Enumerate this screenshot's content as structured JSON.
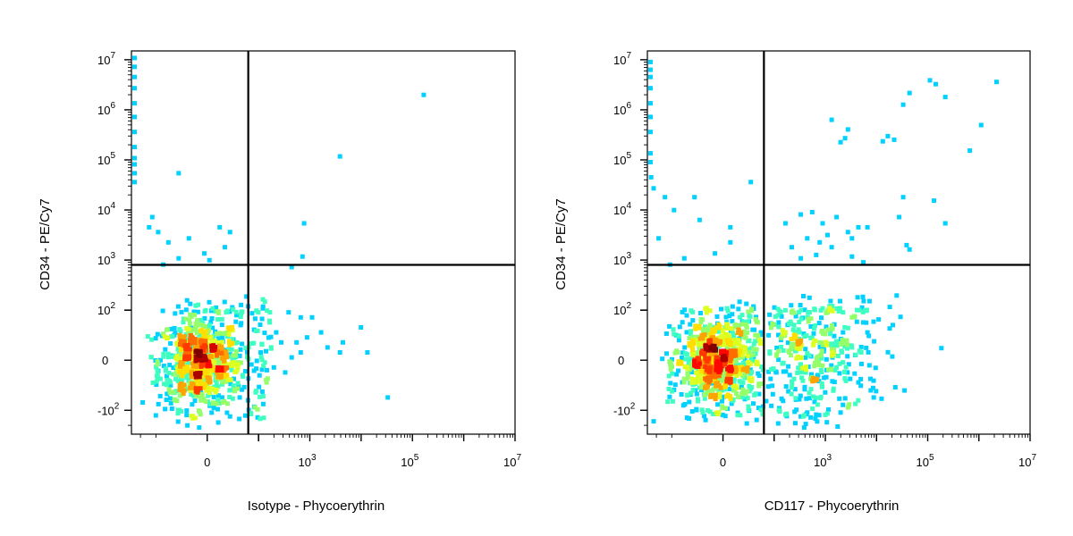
{
  "chart_data": [
    {
      "type": "scatter",
      "title": "",
      "xlabel": "Isotype - Phycoerythrin",
      "ylabel": "CD34 - PE/Cy7",
      "x_scale": "biexponential",
      "y_scale": "biexponential",
      "xlim": [
        -300,
        10000000
      ],
      "ylim": [
        -300,
        15000000
      ],
      "x_ticks": [
        {
          "value": 0,
          "base": "0",
          "exp": ""
        },
        {
          "value": 1000,
          "base": "10",
          "exp": "3"
        },
        {
          "value": 100000,
          "base": "10",
          "exp": "5"
        },
        {
          "value": 10000000,
          "base": "10",
          "exp": "7"
        }
      ],
      "y_ticks": [
        {
          "value": -100,
          "base": "-10",
          "exp": "2"
        },
        {
          "value": 0,
          "base": "0",
          "exp": ""
        },
        {
          "value": 100,
          "base": "10",
          "exp": "2"
        },
        {
          "value": 1000,
          "base": "10",
          "exp": "3"
        },
        {
          "value": 10000,
          "base": "10",
          "exp": "4"
        },
        {
          "value": 100000,
          "base": "10",
          "exp": "5"
        },
        {
          "value": 1000000,
          "base": "10",
          "exp": "6"
        },
        {
          "value": 10000000,
          "base": "10",
          "exp": "7"
        }
      ],
      "gate": {
        "x": 80,
        "y": 800
      },
      "grid": false,
      "colormap": "density-jet",
      "points": [
        [
          150000,
          2200000
        ],
        [
          3500,
          130000
        ],
        [
          -60,
          60000
        ],
        [
          700,
          6000
        ],
        [
          650,
          1300
        ],
        [
          400,
          800
        ],
        [
          30000,
          -70
        ],
        [
          9000,
          70
        ],
        [
          4000,
          40
        ],
        [
          3500,
          20
        ],
        [
          12000,
          20
        ],
        [
          2000,
          30
        ],
        [
          1500,
          60
        ],
        [
          800,
          50
        ],
        [
          600,
          20
        ],
        [
          400,
          10
        ],
        [
          300,
          -20
        ],
        [
          250,
          40
        ],
        [
          200,
          60
        ],
        [
          180,
          -10
        ],
        [
          160,
          30
        ],
        [
          150,
          80
        ],
        [
          120,
          0
        ],
        [
          130,
          -40
        ],
        [
          110,
          120
        ],
        [
          100,
          20
        ],
        [
          90,
          -60
        ],
        [
          95,
          100
        ],
        [
          600,
          90
        ],
        [
          500,
          40
        ],
        [
          1000,
          90
        ],
        [
          350,
          100
        ],
        [
          -130,
          8000
        ],
        [
          -150,
          5000
        ],
        [
          -100,
          4000
        ],
        [
          -80,
          2500
        ],
        [
          -40,
          3000
        ],
        [
          20,
          5000
        ],
        [
          40,
          4000
        ],
        [
          -10,
          1500
        ],
        [
          0,
          1100
        ],
        [
          30,
          2000
        ],
        [
          -60,
          1200
        ],
        [
          -90,
          900
        ],
        [
          -200,
          -80
        ],
        [
          40,
          -120
        ],
        [
          -20,
          -200
        ]
      ],
      "edge_points": [
        [
          -300,
          12000000
        ],
        [
          -300,
          8000000
        ],
        [
          -300,
          5000000
        ],
        [
          -300,
          3000000
        ],
        [
          -300,
          1500000
        ],
        [
          -300,
          800000
        ],
        [
          -300,
          400000
        ],
        [
          -300,
          200000
        ],
        [
          -300,
          120000
        ],
        [
          -300,
          90000
        ],
        [
          -300,
          60000
        ],
        [
          -300,
          40000
        ]
      ],
      "clusters": [
        {
          "cx": -20,
          "cy": 0,
          "sx": 40,
          "sy": 45,
          "n": 700
        },
        {
          "cx": 40,
          "cy": 20,
          "sx": 50,
          "sy": 80,
          "n": 150
        }
      ]
    },
    {
      "type": "scatter",
      "title": "",
      "xlabel": "CD117 - Phycoerythrin",
      "ylabel": "CD34 - PE/Cy7",
      "x_scale": "biexponential",
      "y_scale": "biexponential",
      "xlim": [
        -300,
        10000000
      ],
      "ylim": [
        -300,
        15000000
      ],
      "x_ticks": [
        {
          "value": 0,
          "base": "0",
          "exp": ""
        },
        {
          "value": 1000,
          "base": "10",
          "exp": "3"
        },
        {
          "value": 100000,
          "base": "10",
          "exp": "5"
        },
        {
          "value": 10000000,
          "base": "10",
          "exp": "7"
        }
      ],
      "y_ticks": [
        {
          "value": -100,
          "base": "-10",
          "exp": "2"
        },
        {
          "value": 0,
          "base": "0",
          "exp": ""
        },
        {
          "value": 100,
          "base": "10",
          "exp": "2"
        },
        {
          "value": 1000,
          "base": "10",
          "exp": "3"
        },
        {
          "value": 10000,
          "base": "10",
          "exp": "4"
        },
        {
          "value": 100000,
          "base": "10",
          "exp": "5"
        },
        {
          "value": 1000000,
          "base": "10",
          "exp": "6"
        },
        {
          "value": 10000000,
          "base": "10",
          "exp": "7"
        }
      ],
      "gate": {
        "x": 80,
        "y": 800
      },
      "grid": false,
      "colormap": "density-jet",
      "points": [
        [
          100000,
          4300000
        ],
        [
          2000000,
          4000000
        ],
        [
          130000,
          3600000
        ],
        [
          40000,
          2400000
        ],
        [
          200000,
          2000000
        ],
        [
          30000,
          1400000
        ],
        [
          1000000,
          550000
        ],
        [
          1200,
          700000
        ],
        [
          2500,
          450000
        ],
        [
          2200,
          300000
        ],
        [
          1800,
          250000
        ],
        [
          15000,
          330000
        ],
        [
          20000,
          280000
        ],
        [
          12000,
          260000
        ],
        [
          600000,
          170000
        ],
        [
          30000,
          20000
        ],
        [
          25000,
          8000
        ],
        [
          120000,
          17000
        ],
        [
          200000,
          6000
        ],
        [
          35000,
          2200
        ],
        [
          40000,
          1800
        ],
        [
          50,
          40000
        ],
        [
          -60,
          20000
        ],
        [
          -150,
          20000
        ],
        [
          -100,
          11000
        ],
        [
          -50,
          7000
        ],
        [
          10,
          5000
        ],
        [
          150,
          6000
        ],
        [
          300,
          9000
        ],
        [
          500,
          10000
        ],
        [
          800,
          6000
        ],
        [
          1500,
          8000
        ],
        [
          2500,
          4000
        ],
        [
          4000,
          5000
        ],
        [
          6000,
          5000
        ],
        [
          3000,
          3000
        ],
        [
          1000,
          3500
        ],
        [
          1200,
          2000
        ],
        [
          700,
          2500
        ],
        [
          400,
          3000
        ],
        [
          200,
          2000
        ],
        [
          10,
          2500
        ],
        [
          -20,
          1500
        ],
        [
          -80,
          1200
        ],
        [
          -120,
          900
        ],
        [
          -200,
          3000
        ],
        [
          300,
          1200
        ],
        [
          600,
          1400
        ],
        [
          3000,
          1300
        ],
        [
          5000,
          1000
        ],
        [
          -250,
          30000
        ],
        [
          -280,
          50000
        ],
        [
          -300,
          100000
        ],
        [
          8000,
          -70
        ],
        [
          5000,
          80
        ],
        [
          4000,
          -40
        ],
        [
          3000,
          30
        ],
        [
          2000,
          60
        ],
        [
          1500,
          -10
        ],
        [
          1000,
          100
        ],
        [
          900,
          -60
        ],
        [
          700,
          40
        ],
        [
          500,
          -30
        ],
        [
          400,
          90
        ],
        [
          300,
          10
        ],
        [
          200,
          -50
        ],
        [
          150,
          60
        ],
        [
          100,
          -20
        ],
        [
          2500,
          -90
        ],
        [
          1800,
          -100
        ],
        [
          600,
          -110
        ],
        [
          400,
          -100
        ],
        [
          300,
          -120
        ],
        [
          200,
          100
        ],
        [
          150,
          110
        ],
        [
          800,
          120
        ],
        [
          1200,
          110
        ],
        [
          2000,
          100
        ],
        [
          3000,
          90
        ],
        [
          6000,
          60
        ],
        [
          4500,
          20
        ],
        [
          350,
          -200
        ],
        [
          -250,
          -150
        ]
      ],
      "edge_points": [
        [
          -300,
          10000000
        ],
        [
          -300,
          7000000
        ],
        [
          -300,
          5000000
        ],
        [
          -300,
          3000000
        ],
        [
          -300,
          1500000
        ],
        [
          -300,
          800000
        ],
        [
          -300,
          400000
        ],
        [
          -300,
          150000
        ]
      ],
      "clusters": [
        {
          "cx": -20,
          "cy": 0,
          "sx": 40,
          "sy": 45,
          "n": 750
        },
        {
          "cx": 500,
          "cy": 20,
          "sx": 1.1,
          "sy": 70,
          "n": 450,
          "logx": true
        }
      ]
    }
  ]
}
